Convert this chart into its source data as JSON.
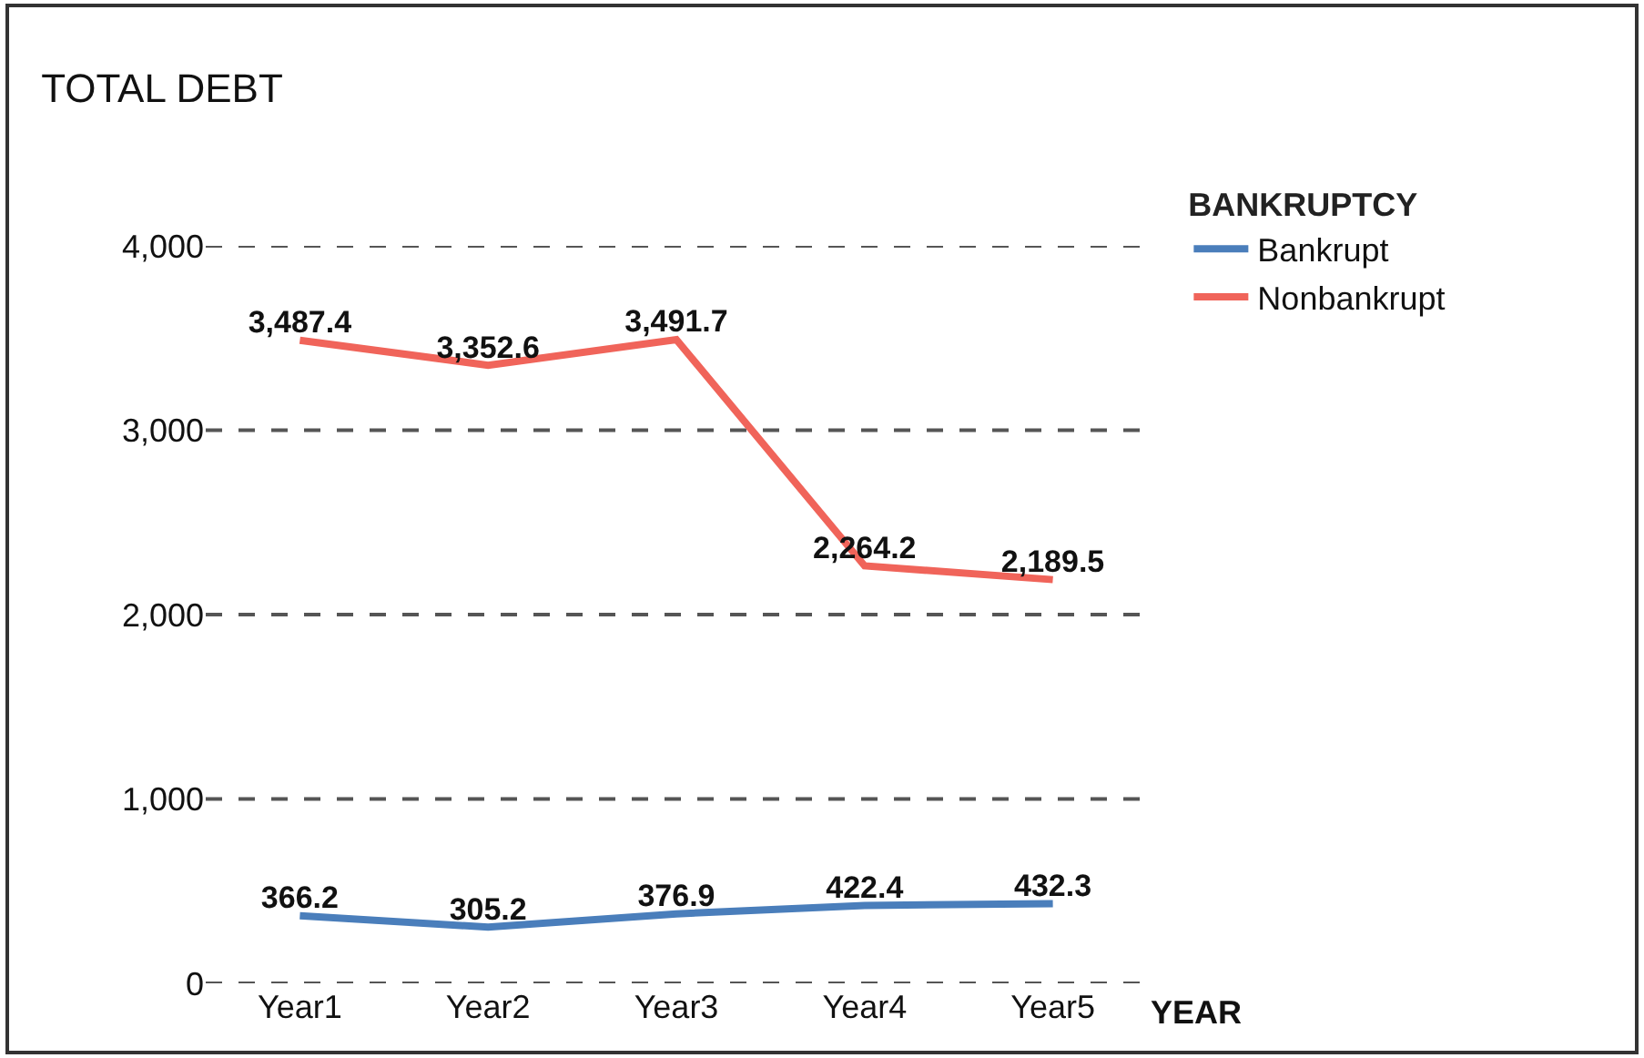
{
  "chart_data": {
    "type": "line",
    "title": "TOTAL DEBT",
    "xlabel": "YEAR",
    "legend_title": "BANKRUPTCY",
    "categories": [
      "Year1",
      "Year2",
      "Year3",
      "Year4",
      "Year5"
    ],
    "series": [
      {
        "name": "Bankrupt",
        "color": "#4a7ebb",
        "values": [
          366.2,
          305.2,
          376.9,
          422.4,
          432.3
        ],
        "value_labels": [
          "366.2",
          "305.2",
          "376.9",
          "422.4",
          "432.3"
        ]
      },
      {
        "name": "Nonbankrupt",
        "color": "#f0645a",
        "values": [
          3487.4,
          3352.6,
          3491.7,
          2264.2,
          2189.5
        ],
        "value_labels": [
          "3,487.4",
          "3,352.6",
          "3,491.7",
          "2,264.2",
          "2,189.5"
        ]
      }
    ],
    "ylim": [
      0,
      4000
    ],
    "yticks": [
      {
        "value": 0,
        "label": "0"
      },
      {
        "value": 1000,
        "label": "1,000"
      },
      {
        "value": 2000,
        "label": "2,000"
      },
      {
        "value": 3000,
        "label": "3,000"
      },
      {
        "value": 4000,
        "label": "4,000"
      }
    ],
    "grid": "y",
    "legend": "top right",
    "marker": "none",
    "line_style": "solid"
  }
}
